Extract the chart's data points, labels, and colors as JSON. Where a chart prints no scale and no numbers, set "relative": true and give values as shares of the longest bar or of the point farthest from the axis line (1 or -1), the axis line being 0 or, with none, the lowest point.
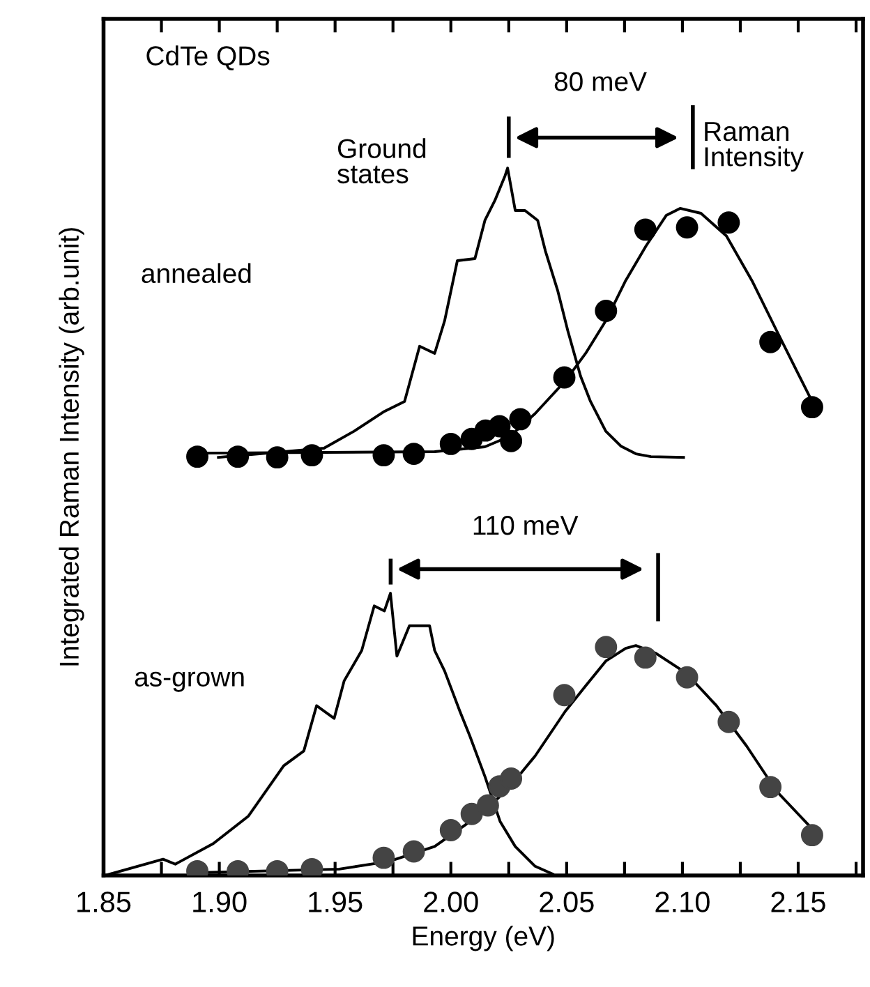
{
  "chart_data": {
    "type": "line",
    "relative": true,
    "xlabel": "Energy (eV)",
    "ylabel": "Integrated Raman Intensity (arb.unit)",
    "xlim": [
      1.85,
      2.178
    ],
    "xticks": [
      1.85,
      {
        "value": 1.875,
        "label": null
      },
      "1.90",
      {
        "value": 1.925,
        "label": null
      },
      1.95,
      {
        "value": 1.975,
        "label": null
      },
      "2.00",
      {
        "value": 2.025,
        "label": null
      },
      2.05,
      {
        "value": 2.075,
        "label": null
      },
      "2.10",
      {
        "value": 2.125,
        "label": null
      },
      2.15,
      {
        "value": 2.175,
        "label": null
      }
    ],
    "grid": false,
    "annotations": [
      "CdTe QDs",
      "80 meV",
      "Ground states",
      "Raman\nIntensity",
      "annealed",
      "110 meV",
      "as-grown"
    ],
    "series": [
      {
        "color": "#000000",
        "marker": "none",
        "x": [
          1.8996,
          1.9452,
          1.9582,
          1.9713,
          1.98,
          1.9865,
          1.993,
          1.9973,
          2.0028,
          2.0104,
          2.0147,
          2.019,
          2.0234,
          2.0245,
          2.0278,
          2.032,
          2.0375,
          2.0408,
          2.0462,
          2.0505,
          2.056,
          2.0603,
          2.0669,
          2.0734,
          2.0799,
          2.0864,
          2.1005
        ],
        "values": [
          0.591,
          0.604,
          0.628,
          0.656,
          0.67,
          0.748,
          0.738,
          0.784,
          0.869,
          0.872,
          0.926,
          0.954,
          0.989,
          1.0,
          0.94,
          0.94,
          0.926,
          0.883,
          0.826,
          0.77,
          0.706,
          0.67,
          0.628,
          0.607,
          0.596,
          0.592,
          0.591
        ]
      },
      {
        "type": "scatter",
        "color": "#000000",
        "marker": "circle",
        "x": [
          1.8905,
          1.908,
          1.925,
          1.94,
          1.971,
          1.984,
          2.0,
          2.009,
          2.015,
          2.021,
          2.026,
          2.03,
          2.049,
          2.067,
          2.084,
          2.102,
          2.12,
          2.138,
          2.156
        ],
        "values": [
          0.592,
          0.592,
          0.591,
          0.594,
          0.594,
          0.596,
          0.61,
          0.617,
          0.629,
          0.635,
          0.614,
          0.645,
          0.704,
          0.798,
          0.913,
          0.916,
          0.923,
          0.754,
          0.662
        ]
      },
      {
        "color": "#000000",
        "marker": "none",
        "x": [
          1.8905,
          1.993,
          2.0147,
          2.0256,
          2.0364,
          2.0494,
          2.0582,
          2.0669,
          2.0755,
          2.0843,
          2.093,
          2.099,
          2.108,
          2.119,
          2.13,
          2.1407,
          2.1494,
          2.156
        ],
        "values": [
          0.597,
          0.599,
          0.606,
          0.621,
          0.653,
          0.699,
          0.738,
          0.784,
          0.841,
          0.89,
          0.933,
          0.943,
          0.936,
          0.904,
          0.841,
          0.77,
          0.713,
          0.67
        ]
      },
      {
        "color": "#000000",
        "marker": "none",
        "x": [
          1.8507,
          1.8757,
          1.881,
          1.8974,
          1.9126,
          1.9278,
          1.9365,
          1.942,
          1.9496,
          1.9539,
          1.9615,
          1.9669,
          1.9713,
          1.9739,
          1.9767,
          1.9821,
          1.9908,
          1.993,
          1.9973,
          2.0039,
          2.0082,
          2.0147,
          2.0213,
          2.0278,
          2.0364,
          2.044
        ],
        "values": [
          0.0,
          0.023,
          0.016,
          0.045,
          0.084,
          0.155,
          0.176,
          0.24,
          0.222,
          0.275,
          0.318,
          0.381,
          0.374,
          0.399,
          0.31,
          0.353,
          0.353,
          0.318,
          0.289,
          0.232,
          0.197,
          0.14,
          0.076,
          0.041,
          0.013,
          0.002
        ]
      },
      {
        "type": "scatter",
        "color": "#444444",
        "marker": "circle",
        "x": [
          1.8905,
          1.908,
          1.925,
          1.94,
          1.971,
          1.984,
          2.0,
          2.009,
          2.016,
          2.021,
          2.026,
          2.049,
          2.067,
          2.084,
          2.102,
          2.12,
          2.138,
          2.156
        ],
        "values": [
          0.006,
          0.006,
          0.006,
          0.009,
          0.025,
          0.034,
          0.064,
          0.087,
          0.099,
          0.126,
          0.137,
          0.255,
          0.323,
          0.308,
          0.28,
          0.217,
          0.125,
          0.057
        ]
      },
      {
        "color": "#000000",
        "marker": "none",
        "x": [
          1.8905,
          1.9518,
          1.9735,
          1.993,
          2.0147,
          2.0256,
          2.0364,
          2.0494,
          2.0582,
          2.0669,
          2.0755,
          2.0799,
          2.0886,
          2.1016,
          2.1147,
          2.1277,
          2.1407,
          2.156
        ],
        "values": [
          0.004,
          0.009,
          0.02,
          0.041,
          0.091,
          0.126,
          0.169,
          0.232,
          0.268,
          0.303,
          0.321,
          0.325,
          0.314,
          0.286,
          0.24,
          0.183,
          0.119,
          0.066
        ]
      }
    ]
  }
}
